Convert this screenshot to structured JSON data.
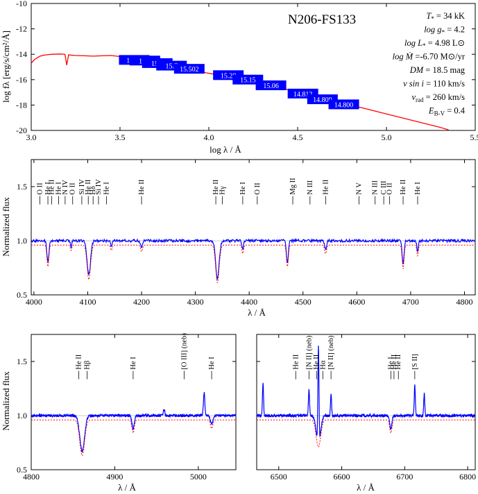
{
  "chart_data": [
    {
      "id": "sed",
      "type": "line",
      "title": "N206-FS133",
      "xlabel": "log λ / Å",
      "ylabel": "log fλ [erg/s/cm²/Å]",
      "xlim": [
        3.0,
        5.5
      ],
      "ylim": [
        -20,
        -10
      ],
      "xticks": [
        3.0,
        3.5,
        4.0,
        4.5,
        5.0,
        5.5
      ],
      "yticks": [
        -20,
        -18,
        -16,
        -14,
        -12,
        -10
      ],
      "xtick_labels": [
        "3.0",
        "3.5",
        "4.0",
        "4.5",
        "5.0",
        "5.5"
      ],
      "ytick_labels": [
        "-20",
        "-18",
        "-16",
        "-14",
        "-12",
        "-10"
      ],
      "series": [
        {
          "color": "#ff0000",
          "x": [
            3.0,
            3.02,
            3.05,
            3.08,
            3.12,
            3.16,
            3.19,
            3.2,
            3.21,
            3.25,
            3.3,
            3.35,
            3.4,
            3.45,
            3.5,
            3.55,
            3.6,
            3.65,
            3.7,
            3.8,
            3.9,
            4.0,
            4.1,
            4.2,
            4.3,
            4.4,
            4.5,
            4.6,
            4.7,
            4.8,
            4.9,
            5.0,
            5.1,
            5.2,
            5.3,
            5.35
          ],
          "y": [
            -14.7,
            -14.4,
            -14.15,
            -14.05,
            -14.0,
            -13.98,
            -14.0,
            -14.85,
            -14.05,
            -14.1,
            -14.12,
            -14.15,
            -14.12,
            -14.1,
            -14.18,
            -14.3,
            -14.45,
            -14.6,
            -14.75,
            -15.0,
            -15.25,
            -15.5,
            -15.75,
            -16.05,
            -16.35,
            -16.65,
            -16.95,
            -17.3,
            -17.65,
            -18.0,
            -18.35,
            -18.7,
            -19.05,
            -19.4,
            -19.75,
            -19.95
          ]
        }
      ],
      "magnitudes": [
        {
          "label": "15.15",
          "x": 3.58,
          "y": -14.5
        },
        {
          "label": "15.9",
          "x": 3.64,
          "y": -14.55
        },
        {
          "label": "15.8",
          "x": 3.71,
          "y": -14.75
        },
        {
          "label": "15.7",
          "x": 3.79,
          "y": -14.95
        },
        {
          "label": "15.502",
          "x": 3.89,
          "y": -15.2
        },
        {
          "label": "15.28",
          "x": 4.11,
          "y": -15.7
        },
        {
          "label": "15.15",
          "x": 4.22,
          "y": -16.05
        },
        {
          "label": "15.06",
          "x": 4.35,
          "y": -16.5
        },
        {
          "label": "14.812",
          "x": 4.53,
          "y": -17.15
        },
        {
          "label": "14.809",
          "x": 4.64,
          "y": -17.6
        },
        {
          "label": "14.800",
          "x": 4.76,
          "y": -18.0
        }
      ],
      "magnitude_color": "#0000ff",
      "parameters": [
        {
          "label": "T",
          "sub": "*",
          "value": " = 34 kK"
        },
        {
          "label": "log g",
          "sub": "*",
          "value": " =  4.2"
        },
        {
          "label": "log L",
          "sub": "*",
          "value": " = 4.98 L⊙"
        },
        {
          "label": "log Ṁ",
          "sub": "",
          "value": " =-6.70 M⊙/yr"
        },
        {
          "label": "DM",
          "sub": "",
          "value": " = 18.5 mag"
        },
        {
          "label": "v sin i",
          "sub": "",
          "value": " = 110 km/s"
        },
        {
          "label": "v",
          "sub": "rad",
          "value": " = 260 km/s"
        },
        {
          "label": "E",
          "sub": "B-V",
          "value": " = 0.4"
        }
      ]
    },
    {
      "id": "blue",
      "type": "line",
      "xlabel": "λ / Å",
      "ylabel": "Normalized flux",
      "xlim": [
        3995,
        4820
      ],
      "ylim": [
        0.5,
        1.75
      ],
      "xticks": [
        4000,
        4100,
        4200,
        4300,
        4400,
        4500,
        4600,
        4700,
        4800
      ],
      "yticks": [
        0.5,
        1.0,
        1.5
      ],
      "xtick_labels": [
        "4000",
        "4100",
        "4200",
        "4300",
        "4400",
        "4500",
        "4600",
        "4700",
        "4800"
      ],
      "ytick_labels": [
        "0.5",
        "1.0",
        "1.5"
      ],
      "continuum": 1.0,
      "series": [
        {
          "name": "observed",
          "color": "#0000ff",
          "dash": false
        },
        {
          "name": "model",
          "color": "#ff0000",
          "dash": true
        }
      ],
      "lines": [
        {
          "wl": 4026,
          "depth": 0.2,
          "width": 2.5
        },
        {
          "wl": 4069,
          "depth": 0.05,
          "width": 2
        },
        {
          "wl": 4102,
          "depth": 0.32,
          "width": 4.5
        },
        {
          "wl": 4144,
          "depth": 0.05,
          "width": 2
        },
        {
          "wl": 4200,
          "depth": 0.06,
          "width": 2.5
        },
        {
          "wl": 4341,
          "depth": 0.35,
          "width": 4.5
        },
        {
          "wl": 4388,
          "depth": 0.08,
          "width": 2
        },
        {
          "wl": 4471,
          "depth": 0.2,
          "width": 2.5
        },
        {
          "wl": 4542,
          "depth": 0.08,
          "width": 2.5
        },
        {
          "wl": 4686,
          "depth": 0.22,
          "width": 2.5
        },
        {
          "wl": 4713,
          "depth": 0.1,
          "width": 2
        }
      ],
      "line_ids": [
        {
          "text": "O II",
          "x": 4011
        },
        {
          "text": "He I",
          "x": 4026
        },
        {
          "text": "He II",
          "x": 4033
        },
        {
          "text": "He I",
          "x": 4046
        },
        {
          "text": "N IV",
          "x": 4058
        },
        {
          "text": "O II",
          "x": 4072
        },
        {
          "text": "Si IV",
          "x": 4089
        },
        {
          "text": "He II",
          "x": 4101
        },
        {
          "text": "Hδ",
          "x": 4110
        },
        {
          "text": "Si IV",
          "x": 4120
        },
        {
          "text": "He I",
          "x": 4135
        },
        {
          "text": "He II",
          "x": 4200
        },
        {
          "text": "He II",
          "x": 4338
        },
        {
          "text": "Hγ",
          "x": 4350
        },
        {
          "text": "He I",
          "x": 4388
        },
        {
          "text": "O II",
          "x": 4415
        },
        {
          "text": "Mg II",
          "x": 4481
        },
        {
          "text": "N III",
          "x": 4513
        },
        {
          "text": "He II",
          "x": 4542
        },
        {
          "text": "N V",
          "x": 4604
        },
        {
          "text": "N III",
          "x": 4634
        },
        {
          "text": "C III",
          "x": 4650
        },
        {
          "text": "O II",
          "x": 4661
        },
        {
          "text": "He II",
          "x": 4686
        },
        {
          "text": "He I",
          "x": 4713
        }
      ]
    },
    {
      "id": "hbeta",
      "type": "line",
      "xlabel": "λ / Å",
      "ylabel": "Normalized flux",
      "xlim": [
        4800,
        5045
      ],
      "ylim": [
        0.5,
        1.75
      ],
      "xticks": [
        4800,
        4900,
        5000
      ],
      "yticks": [
        0.5,
        1.0,
        1.5
      ],
      "xtick_labels": [
        "4800",
        "4900",
        "5000"
      ],
      "ytick_labels": [
        "0.5",
        "1.0",
        "1.5"
      ],
      "series": [
        {
          "name": "observed",
          "color": "#0000ff",
          "dash": false
        },
        {
          "name": "model",
          "color": "#ff0000",
          "dash": true
        }
      ],
      "lines": [
        {
          "wl": 4861,
          "depth": 0.33,
          "width": 4
        },
        {
          "wl": 4922,
          "depth": 0.12,
          "width": 2
        },
        {
          "wl": 5016,
          "depth": 0.08,
          "width": 2
        }
      ],
      "emissions": [
        {
          "wl": 4959,
          "height": 0.06
        },
        {
          "wl": 5007,
          "height": 0.21
        }
      ],
      "line_ids": [
        {
          "text": "He II",
          "x": 4857
        },
        {
          "text": "Hβ",
          "x": 4867
        },
        {
          "text": "He I",
          "x": 4922
        },
        {
          "text": "[O III] (neb)",
          "x": 4983
        },
        {
          "text": "He I",
          "x": 5016
        }
      ]
    },
    {
      "id": "halpha",
      "type": "line",
      "xlabel": "λ / Å",
      "xlim": [
        6465,
        6812
      ],
      "ylim": [
        0.5,
        1.75
      ],
      "xticks": [
        6500,
        6600,
        6700,
        6800
      ],
      "yticks": [
        0.5,
        1.0,
        1.5
      ],
      "xtick_labels": [
        "6500",
        "6600",
        "6700",
        "6800"
      ],
      "ytick_labels": [
        "",
        "",
        ""
      ],
      "series": [
        {
          "name": "observed",
          "color": "#0000ff",
          "dash": false
        },
        {
          "name": "model",
          "color": "#ff0000",
          "dash": true
        }
      ],
      "lines": [
        {
          "wl": 6563,
          "depth": 0.25,
          "width": 5
        },
        {
          "wl": 6678,
          "depth": 0.12,
          "width": 2.5
        }
      ],
      "emissions": [
        {
          "wl": 6475,
          "height": 0.3
        },
        {
          "wl": 6548,
          "height": 0.25
        },
        {
          "wl": 6563,
          "height": 0.9
        },
        {
          "wl": 6583,
          "height": 0.2
        },
        {
          "wl": 6716,
          "height": 0.28
        },
        {
          "wl": 6731,
          "height": 0.2
        }
      ],
      "line_ids": [
        {
          "text": "He II",
          "x": 6527
        },
        {
          "text": "[N II] (neb)",
          "x": 6548
        },
        {
          "text": "He II",
          "x": 6560
        },
        {
          "text": "Hα",
          "x": 6570
        },
        {
          "text": "[N II] (neb)",
          "x": 6583
        },
        {
          "text": "He I",
          "x": 6678
        },
        {
          "text": "He II",
          "x": 6683
        },
        {
          "text": "He II",
          "x": 6690
        },
        {
          "text": "[S II]",
          "x": 6716
        }
      ]
    }
  ]
}
